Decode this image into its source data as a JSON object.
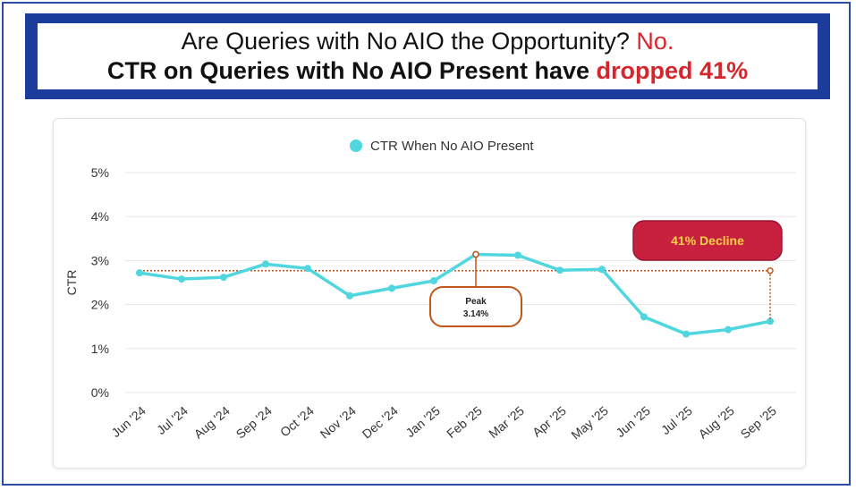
{
  "header": {
    "line1_main": "Are Queries with No AIO the Opportunity?",
    "line1_emph": "No.",
    "line2_main": "CTR on Queries with No AIO Present have",
    "line2_emph": "dropped 41%"
  },
  "colors": {
    "banner": "#1c3c9c",
    "accent_red": "#d6262d",
    "series": "#4fd6de",
    "annotation": "#c0561a",
    "decline_box": "#c8203f",
    "decline_text": "#ffd24a"
  },
  "chart_data": {
    "type": "line",
    "title": "",
    "xlabel": "",
    "ylabel": "CTR",
    "ylim": [
      0,
      5
    ],
    "yticks": [
      "0%",
      "1%",
      "2%",
      "3%",
      "4%",
      "5%"
    ],
    "categories": [
      "Jun '24",
      "Jul '24",
      "Aug '24",
      "Sep '24",
      "Oct '24",
      "Nov '24",
      "Dec '24",
      "Jan '25",
      "Feb '25",
      "Mar '25",
      "Apr '25",
      "May '25",
      "Jun '25",
      "Jul '25",
      "Aug '25",
      "Sep '25"
    ],
    "series": [
      {
        "name": "CTR When No AIO Present",
        "values": [
          2.72,
          2.58,
          2.62,
          2.92,
          2.82,
          2.2,
          2.37,
          2.54,
          3.14,
          3.12,
          2.78,
          2.8,
          1.72,
          1.33,
          1.43,
          1.62
        ]
      }
    ],
    "reference_line": {
      "value": 2.77
    },
    "legend": "top-center",
    "annotations": [
      {
        "category": "Feb '25",
        "title": "Peak",
        "label": "3.14%"
      },
      {
        "category": "Sep '25",
        "label": "41% Decline"
      }
    ]
  }
}
